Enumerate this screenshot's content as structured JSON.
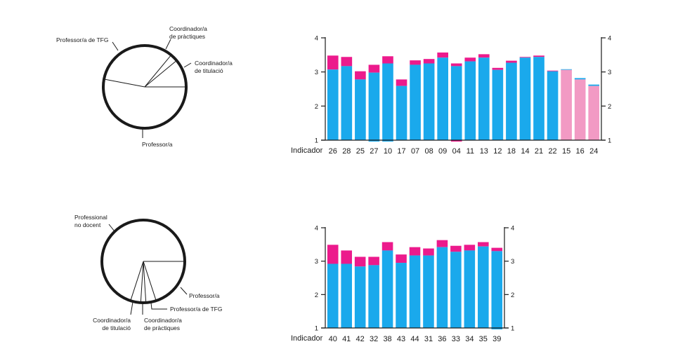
{
  "colors": {
    "base": "#1aa9ec",
    "increase": "#ec1a8c",
    "pink": "#f29ac4",
    "axis": "#1a1a1a"
  },
  "chart_data": [
    {
      "type": "pie",
      "id": "pie-top",
      "slices": [
        {
          "label": "Coordinador/a de titulació",
          "share": 0.11
        },
        {
          "label": "Coordinador/a de pràctiques",
          "share": 0.03
        },
        {
          "label": "Professor/a de TFG",
          "share": 0.33
        },
        {
          "label": "Professor/a",
          "share": 0.53
        }
      ],
      "label_lines": [
        "Coordinador/a",
        "de pràctiques",
        "Professor/a de TFG",
        "Coordinador/a",
        "de titulació",
        "Professor/a"
      ]
    },
    {
      "type": "bar",
      "id": "bar-top",
      "xlabel": "Indicador",
      "categories": [
        "26",
        "28",
        "25",
        "27",
        "10",
        "17",
        "07",
        "08",
        "09",
        "04",
        "11",
        "13",
        "12",
        "18",
        "14",
        "21",
        "22",
        "15",
        "16",
        "24"
      ],
      "series": [
        {
          "name": "base",
          "values": [
            3.07,
            3.17,
            2.78,
            2.98,
            3.25,
            2.59,
            3.21,
            3.25,
            3.42,
            3.17,
            3.31,
            3.42,
            3.06,
            3.27,
            3.42,
            3.44,
            3.02,
            3.06,
            2.78,
            2.59
          ]
        },
        {
          "name": "top",
          "values": [
            3.48,
            3.44,
            3.02,
            3.21,
            3.46,
            2.78,
            3.34,
            3.38,
            3.57,
            3.25,
            3.42,
            3.52,
            3.12,
            3.33,
            3.44,
            3.48,
            3.04,
            3.08,
            2.82,
            2.63
          ]
        }
      ],
      "pink_categories": [
        "15",
        "16",
        "24"
      ],
      "below_axis": {
        "27": "base",
        "10": "base",
        "04": "increase"
      },
      "ylim": [
        1,
        4
      ],
      "yticks": [
        "1",
        "2",
        "3",
        "4"
      ],
      "right_axis": true
    },
    {
      "type": "pie",
      "id": "pie-bottom",
      "slices": [
        {
          "label": "Professor/a",
          "share": 0.2
        },
        {
          "label": "Professor/a de TFG",
          "share": 0.04
        },
        {
          "label": "Coordinador/a de pràctiques",
          "share": 0.02
        },
        {
          "label": "Coordinador/a de titulació",
          "share": 0.04
        },
        {
          "label": "Professional no docent",
          "share": 0.7
        }
      ],
      "label_lines": [
        "Professional",
        "no docent",
        "Professor/a",
        "Professor/a de TFG",
        "Coordinador/a",
        "de titulació",
        "Coordinador/a",
        "de pràctiques"
      ]
    },
    {
      "type": "bar",
      "id": "bar-bottom",
      "xlabel": "Indicador",
      "categories": [
        "40",
        "41",
        "42",
        "32",
        "38",
        "43",
        "44",
        "31",
        "36",
        "33",
        "34",
        "35",
        "39"
      ],
      "series": [
        {
          "name": "base",
          "values": [
            2.92,
            2.92,
            2.84,
            2.88,
            3.32,
            2.95,
            3.17,
            3.17,
            3.42,
            3.28,
            3.32,
            3.44,
            3.3
          ]
        },
        {
          "name": "top",
          "values": [
            3.49,
            3.32,
            3.13,
            3.13,
            3.57,
            3.2,
            3.42,
            3.38,
            3.63,
            3.46,
            3.49,
            3.57,
            3.4
          ]
        }
      ],
      "below_axis": {
        "39": "base"
      },
      "ylim": [
        1,
        4
      ],
      "yticks": [
        "1",
        "2",
        "3",
        "4"
      ],
      "right_axis": true
    }
  ]
}
